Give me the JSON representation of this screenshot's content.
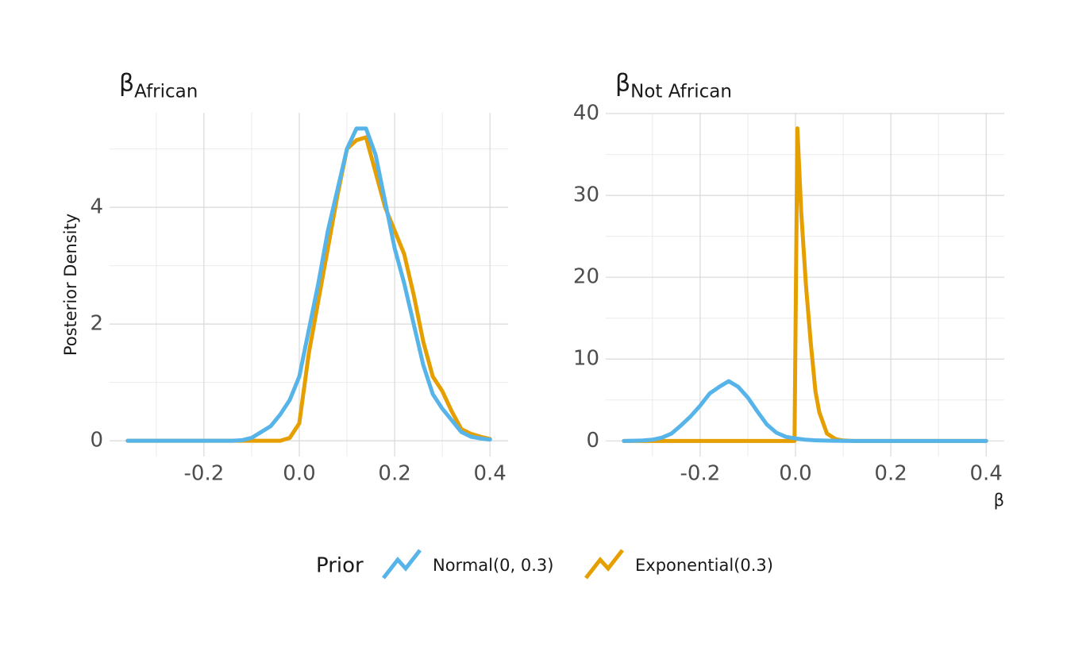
{
  "chart_data": [
    {
      "type": "line",
      "title": "β",
      "title_subscript": "African",
      "y_label": "Posterior Density",
      "xlim": [
        -0.398,
        0.438
      ],
      "ylim": [
        -0.27,
        5.62
      ],
      "xticks": [
        -0.2,
        {
          "value": 0,
          "label": "0.0"
        },
        0.2,
        0.4
      ],
      "yticks": [
        0,
        2,
        4
      ],
      "x_minor_grid": [
        -0.3,
        -0.1,
        0.1,
        0.3
      ],
      "y_minor_grid": [
        1,
        3,
        5
      ],
      "grid": true,
      "series": [
        {
          "name": "Normal(0, 0.3)",
          "color": "#56B4E9",
          "x": [
            -0.36,
            -0.34,
            -0.32,
            -0.3,
            -0.28,
            -0.26,
            -0.24,
            -0.22,
            -0.2,
            -0.18,
            -0.16,
            -0.14,
            -0.12,
            -0.1,
            -0.08,
            -0.06,
            -0.04,
            -0.02,
            0,
            0.02,
            0.04,
            0.06,
            0.08,
            0.1,
            0.12,
            0.14,
            0.16,
            0.18,
            0.2,
            0.22,
            0.24,
            0.26,
            0.28,
            0.3,
            0.32,
            0.34,
            0.36,
            0.38,
            0.4
          ],
          "values": [
            0,
            0,
            0,
            0,
            0,
            0,
            0,
            0,
            0,
            0,
            0,
            0,
            0.01,
            0.05,
            0.15,
            0.25,
            0.45,
            0.7,
            1.1,
            1.9,
            2.7,
            3.6,
            4.3,
            5.0,
            5.35,
            5.35,
            4.9,
            4.1,
            3.3,
            2.7,
            2.0,
            1.3,
            0.8,
            0.55,
            0.35,
            0.15,
            0.07,
            0.04,
            0.02
          ]
        },
        {
          "name": "Exponential(0.3)",
          "color": "#E69F00",
          "x": [
            -0.36,
            -0.34,
            -0.32,
            -0.3,
            -0.28,
            -0.26,
            -0.24,
            -0.22,
            -0.2,
            -0.18,
            -0.16,
            -0.14,
            -0.12,
            -0.1,
            -0.08,
            -0.06,
            -0.04,
            -0.02,
            0,
            0.02,
            0.04,
            0.06,
            0.08,
            0.1,
            0.12,
            0.14,
            0.16,
            0.18,
            0.2,
            0.22,
            0.24,
            0.26,
            0.28,
            0.3,
            0.32,
            0.34,
            0.36,
            0.38,
            0.4
          ],
          "values": [
            0,
            0,
            0,
            0,
            0,
            0,
            0,
            0,
            0,
            0,
            0,
            0,
            0,
            0,
            0,
            0,
            0,
            0.05,
            0.3,
            1.5,
            2.4,
            3.3,
            4.2,
            5.0,
            5.15,
            5.2,
            4.6,
            4.0,
            3.6,
            3.2,
            2.5,
            1.7,
            1.1,
            0.85,
            0.5,
            0.2,
            0.12,
            0.07,
            0.03
          ]
        }
      ]
    },
    {
      "type": "line",
      "title": "β",
      "title_subscript": "Not African",
      "x_label": "β",
      "xlim": [
        -0.398,
        0.438
      ],
      "ylim": [
        -1.91,
        40.1
      ],
      "xticks": [
        -0.2,
        {
          "value": 0,
          "label": "0.0"
        },
        0.2,
        0.4
      ],
      "yticks": [
        0,
        10,
        20,
        30,
        40
      ],
      "x_minor_grid": [
        -0.3,
        -0.1,
        0.1,
        0.3
      ],
      "y_minor_grid": [
        5,
        15,
        25,
        35
      ],
      "grid": true,
      "series": [
        {
          "name": "Normal(0, 0.3)",
          "color": "#56B4E9",
          "x": [
            -0.36,
            -0.34,
            -0.32,
            -0.3,
            -0.28,
            -0.26,
            -0.24,
            -0.22,
            -0.2,
            -0.18,
            -0.16,
            -0.14,
            -0.12,
            -0.1,
            -0.08,
            -0.06,
            -0.04,
            -0.02,
            0,
            0.02,
            0.04,
            0.06,
            0.08,
            0.1,
            0.12,
            0.2,
            0.3,
            0.4
          ],
          "values": [
            0,
            0.02,
            0.05,
            0.15,
            0.4,
            0.9,
            1.9,
            3.0,
            4.3,
            5.8,
            6.6,
            7.3,
            6.6,
            5.3,
            3.6,
            2.0,
            1.0,
            0.5,
            0.3,
            0.15,
            0.08,
            0.04,
            0.02,
            0.01,
            0,
            0,
            0,
            0
          ]
        },
        {
          "name": "Exponential(0.3)",
          "color": "#E69F00",
          "x": [
            -0.36,
            -0.01,
            -0.002,
            0.004,
            0.012,
            0.022,
            0.032,
            0.042,
            0.05,
            0.058,
            0.066,
            0.074,
            0.085,
            0.1,
            0.12,
            0.2,
            0.4
          ],
          "values": [
            0,
            0,
            0,
            38.2,
            28,
            19,
            12,
            6,
            3.5,
            2.2,
            0.9,
            0.6,
            0.2,
            0.05,
            0,
            0,
            0
          ]
        }
      ]
    }
  ],
  "legend": {
    "title": "Prior"
  }
}
